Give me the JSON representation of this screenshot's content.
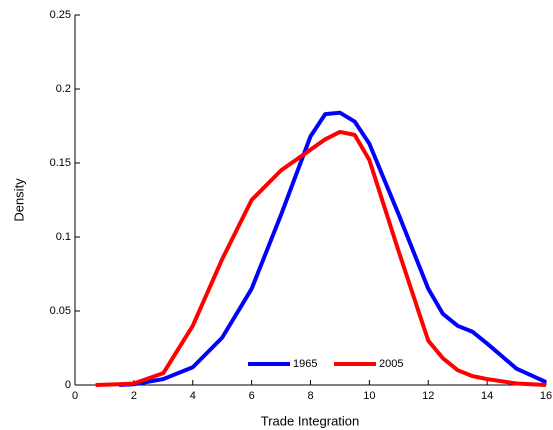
{
  "chart_data": {
    "type": "line",
    "x_label": "Trade Integration",
    "y_label": "Density",
    "x": [
      0.7,
      1.5,
      2,
      3,
      4,
      5,
      6,
      7,
      8,
      8.5,
      9,
      9.5,
      10,
      11,
      12,
      12.5,
      13,
      13.5,
      14,
      15,
      16
    ],
    "series": [
      {
        "name": "1965",
        "color": "#0000ff",
        "values": [
          null,
          0,
          0.0005,
          0.004,
          0.012,
          0.032,
          0.065,
          0.115,
          0.168,
          0.183,
          0.184,
          0.178,
          0.163,
          0.115,
          0.065,
          0.048,
          0.04,
          0.036,
          0.028,
          0.011,
          0.002
        ]
      },
      {
        "name": "2005",
        "color": "#ff0000",
        "values": [
          0,
          0.0005,
          0.001,
          0.008,
          0.04,
          0.085,
          0.125,
          0.145,
          0.159,
          0.166,
          0.171,
          0.169,
          0.152,
          0.09,
          0.03,
          0.018,
          0.01,
          0.006,
          0.004,
          0.001,
          0
        ]
      }
    ],
    "xlim": [
      0,
      16
    ],
    "xticks": [
      0,
      2,
      4,
      6,
      8,
      10,
      12,
      14,
      16
    ],
    "ylim": [
      0,
      0.25
    ],
    "yticks": [
      0,
      0.05,
      0.1,
      0.15,
      0.2,
      0.25
    ],
    "legend": "bottom"
  }
}
